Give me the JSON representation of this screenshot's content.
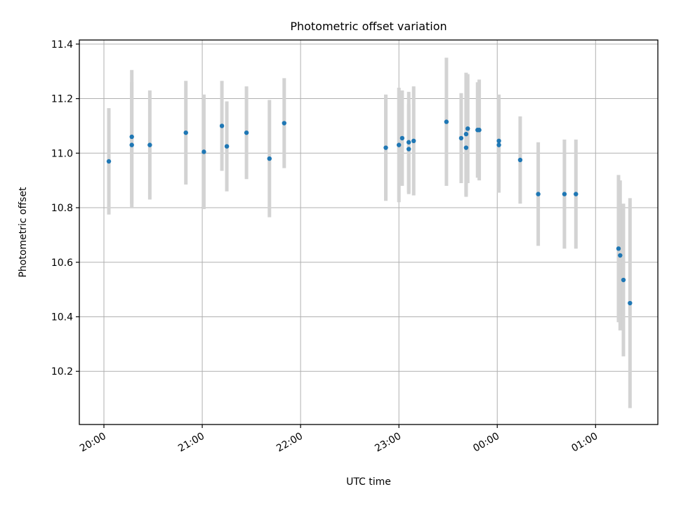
{
  "chart_data": {
    "type": "scatter",
    "title": "Photometric offset variation",
    "xlabel": "UTC time",
    "ylabel": "Photometric offset",
    "x_axis_type": "time",
    "x_tick_labels": [
      "20:00",
      "21:00",
      "22:00",
      "23:00",
      "00:00",
      "01:00"
    ],
    "x_ticks": [
      "20:00",
      "21:00",
      "22:00",
      "23:00",
      "00:00",
      "01:00"
    ],
    "y_ticks": [
      10.2,
      10.4,
      10.6,
      10.8,
      11.0,
      11.2,
      11.4
    ],
    "y_tick_labels": [
      "10.2",
      "10.4",
      "10.6",
      "10.8",
      "11.0",
      "11.2",
      "11.4"
    ],
    "xlim": [
      "19:45",
      "01:38"
    ],
    "ylim": [
      10.005,
      11.415
    ],
    "grid": true,
    "legend": false,
    "colors": {
      "points": "#1f77b4",
      "errorbars": "#d3d3d3",
      "grid": "#b0b0b0"
    },
    "series": [
      {
        "points": [
          {
            "x": "20:03",
            "y": 10.97,
            "yerr": 0.195
          },
          {
            "x": "20:17",
            "y": 11.03,
            "yerr": 0.23
          },
          {
            "x": "20:17",
            "y": 11.06,
            "yerr": 0.245
          },
          {
            "x": "20:28",
            "y": 11.03,
            "yerr": 0.2
          },
          {
            "x": "20:50",
            "y": 11.075,
            "yerr": 0.19
          },
          {
            "x": "21:01",
            "y": 11.005,
            "yerr": 0.21
          },
          {
            "x": "21:12",
            "y": 11.1,
            "yerr": 0.165
          },
          {
            "x": "21:15",
            "y": 11.025,
            "yerr": 0.165
          },
          {
            "x": "21:27",
            "y": 11.075,
            "yerr": 0.17
          },
          {
            "x": "21:41",
            "y": 10.98,
            "yerr": 0.215
          },
          {
            "x": "21:50",
            "y": 11.11,
            "yerr": 0.165
          },
          {
            "x": "22:52",
            "y": 11.02,
            "yerr": 0.195
          },
          {
            "x": "23:00",
            "y": 11.03,
            "yerr": 0.21
          },
          {
            "x": "23:02",
            "y": 11.055,
            "yerr": 0.175
          },
          {
            "x": "23:06",
            "y": 11.04,
            "yerr": 0.185
          },
          {
            "x": "23:06",
            "y": 11.015,
            "yerr": 0.165
          },
          {
            "x": "23:09",
            "y": 11.045,
            "yerr": 0.2
          },
          {
            "x": "23:29",
            "y": 11.115,
            "yerr": 0.235
          },
          {
            "x": "23:38",
            "y": 11.055,
            "yerr": 0.165
          },
          {
            "x": "23:41",
            "y": 11.02,
            "yerr": 0.18
          },
          {
            "x": "23:41",
            "y": 11.07,
            "yerr": 0.225
          },
          {
            "x": "23:42",
            "y": 11.09,
            "yerr": 0.2
          },
          {
            "x": "23:48",
            "y": 11.085,
            "yerr": 0.175
          },
          {
            "x": "23:49",
            "y": 11.085,
            "yerr": 0.185
          },
          {
            "x": "00:01",
            "y": 11.045,
            "yerr": 0.17
          },
          {
            "x": "00:01",
            "y": 11.03,
            "yerr": 0.175
          },
          {
            "x": "00:14",
            "y": 10.975,
            "yerr": 0.16
          },
          {
            "x": "00:25",
            "y": 10.85,
            "yerr": 0.19
          },
          {
            "x": "00:41",
            "y": 10.85,
            "yerr": 0.2
          },
          {
            "x": "00:48",
            "y": 10.85,
            "yerr": 0.2
          },
          {
            "x": "01:14",
            "y": 10.65,
            "yerr": 0.27
          },
          {
            "x": "01:15",
            "y": 10.625,
            "yerr": 0.275
          },
          {
            "x": "01:17",
            "y": 10.535,
            "yerr": 0.28
          },
          {
            "x": "01:21",
            "y": 10.45,
            "yerr": 0.385
          }
        ]
      }
    ]
  }
}
